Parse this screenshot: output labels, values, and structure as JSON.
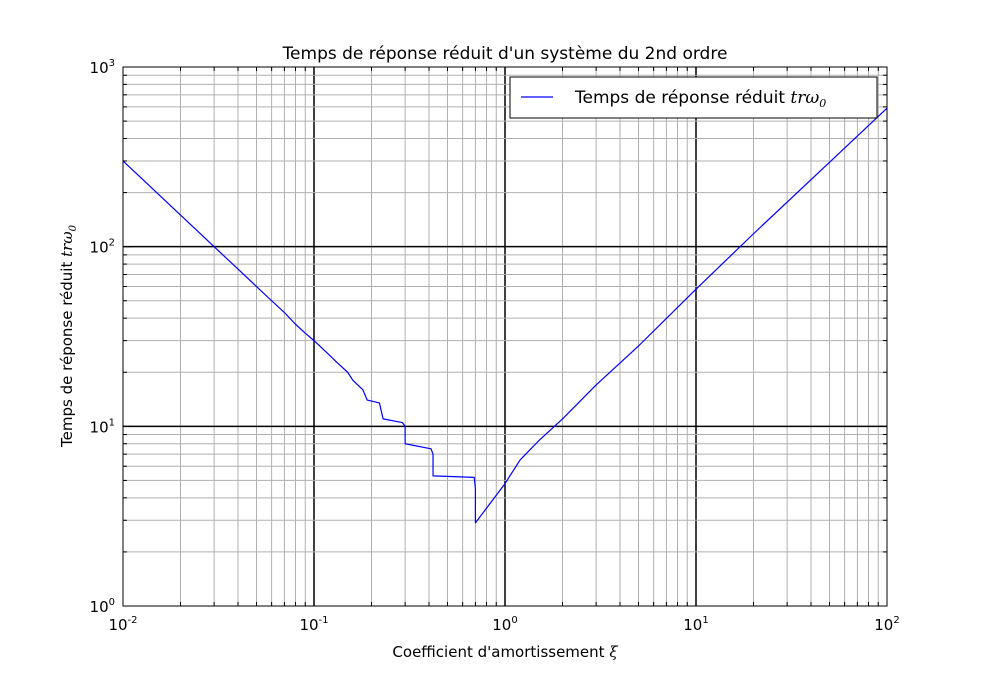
{
  "chart_data": {
    "type": "line",
    "title": "Temps de réponse réduit d'un système du 2nd ordre",
    "xlabel": "Coefficient d'amortissement",
    "xlabel_symbol": "ξ",
    "ylabel": "Temps de réponse réduit",
    "ylabel_symbol": "trω",
    "ylabel_subscript": "0",
    "xscale": "log",
    "yscale": "log",
    "xlim": [
      0.01,
      100
    ],
    "ylim": [
      1,
      1000
    ],
    "grid": "major and minor",
    "legend_position": "top-right",
    "x_ticks": [
      {
        "base": "10",
        "exp": "-2"
      },
      {
        "base": "10",
        "exp": "-1"
      },
      {
        "base": "10",
        "exp": "0"
      },
      {
        "base": "10",
        "exp": "1"
      },
      {
        "base": "10",
        "exp": "2"
      }
    ],
    "y_ticks": [
      {
        "base": "10",
        "exp": "0"
      },
      {
        "base": "10",
        "exp": "1"
      },
      {
        "base": "10",
        "exp": "2"
      },
      {
        "base": "10",
        "exp": "3"
      }
    ],
    "series": [
      {
        "name": "Temps de réponse réduit",
        "name_symbol": "trω",
        "name_subscript": "0",
        "color": "#0000ff",
        "x": [
          0.01,
          0.015,
          0.02,
          0.025,
          0.03,
          0.04,
          0.05,
          0.06,
          0.07,
          0.08,
          0.09,
          0.1,
          0.12,
          0.13,
          0.15,
          0.16,
          0.18,
          0.19,
          0.22,
          0.23,
          0.29,
          0.3,
          0.3,
          0.41,
          0.42,
          0.42,
          0.69,
          0.7,
          0.7,
          0.8,
          1.0,
          1.2,
          1.5,
          2.0,
          3.0,
          5.0,
          10,
          20,
          50,
          100
        ],
        "y": [
          300,
          200,
          150,
          120,
          100,
          75,
          60,
          50,
          43,
          37,
          33,
          30,
          25,
          23,
          20,
          18,
          16,
          14,
          13.5,
          11,
          10.5,
          10,
          8,
          7.5,
          7,
          5.3,
          5.2,
          4.5,
          2.9,
          3.5,
          4.8,
          6.5,
          8.3,
          11,
          17,
          28,
          58,
          118,
          295,
          590
        ]
      }
    ]
  }
}
